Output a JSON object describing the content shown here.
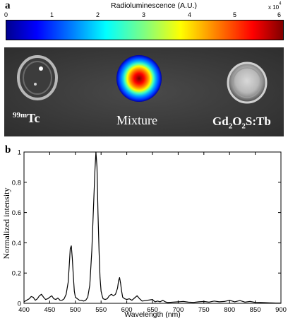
{
  "panel_a": {
    "letter": "a",
    "colorbar": {
      "title": "Radioluminescence (A.U.)",
      "ticks": [
        "0",
        "1",
        "2",
        "3",
        "4",
        "5",
        "6"
      ],
      "exponent_base": "x 10",
      "exponent_power": "4",
      "colormap": "jet"
    },
    "labels": {
      "left_mass": "99m",
      "left_symbol": "Tc",
      "center": "Mixture",
      "right_parts": [
        "Gd",
        "2",
        "O",
        "2",
        "S:Tb"
      ]
    }
  },
  "panel_b": {
    "letter": "b"
  },
  "chart_data": {
    "type": "line",
    "xlabel": "Wavelength (nm)",
    "ylabel": "Normalized intensity",
    "xlim": [
      400,
      900
    ],
    "ylim": [
      0,
      1
    ],
    "xticks": [
      400,
      450,
      500,
      550,
      600,
      650,
      700,
      750,
      800,
      850,
      900
    ],
    "yticks": [
      0,
      0.2,
      0.4,
      0.6,
      0.8,
      1
    ],
    "ytick_labels": [
      "0",
      "0.2",
      "0.4",
      "0.6",
      "0.8",
      "1"
    ],
    "grid": false,
    "series": [
      {
        "x": [
          400,
          405,
          410,
          414,
          418,
          422,
          426,
          430,
          434,
          438,
          442,
          446,
          450,
          454,
          458,
          462,
          466,
          470,
          474,
          478,
          482,
          486,
          488,
          490,
          492,
          494,
          496,
          498,
          500,
          504,
          508,
          512,
          516,
          520,
          524,
          528,
          532,
          536,
          538,
          540,
          542,
          544,
          546,
          548,
          550,
          552,
          554,
          558,
          562,
          566,
          570,
          574,
          578,
          582,
          584,
          586,
          588,
          590,
          592,
          596,
          600,
          605,
          610,
          615,
          620,
          625,
          630,
          640,
          650,
          655,
          660,
          665,
          670,
          675,
          680,
          690,
          700,
          710,
          720,
          730,
          740,
          750,
          760,
          770,
          780,
          790,
          800,
          810,
          820,
          830,
          840,
          850,
          860,
          870,
          880,
          890,
          900
        ],
        "y": [
          0.01,
          0.02,
          0.03,
          0.045,
          0.04,
          0.02,
          0.03,
          0.05,
          0.06,
          0.04,
          0.025,
          0.03,
          0.04,
          0.05,
          0.03,
          0.025,
          0.035,
          0.02,
          0.02,
          0.03,
          0.06,
          0.14,
          0.25,
          0.36,
          0.38,
          0.3,
          0.18,
          0.08,
          0.04,
          0.03,
          0.02,
          0.02,
          0.015,
          0.02,
          0.04,
          0.12,
          0.35,
          0.7,
          0.88,
          1.0,
          0.9,
          0.6,
          0.35,
          0.17,
          0.08,
          0.05,
          0.03,
          0.025,
          0.03,
          0.05,
          0.06,
          0.05,
          0.06,
          0.1,
          0.15,
          0.17,
          0.13,
          0.08,
          0.04,
          0.03,
          0.025,
          0.03,
          0.02,
          0.035,
          0.05,
          0.03,
          0.015,
          0.02,
          0.025,
          0.01,
          0.015,
          0.01,
          0.02,
          0.01,
          0.005,
          0.008,
          0.01,
          0.012,
          0.008,
          0.006,
          0.01,
          0.012,
          0.008,
          0.015,
          0.01,
          0.012,
          0.02,
          0.01,
          0.018,
          0.008,
          0.012,
          0.006,
          0.005,
          0.004,
          0.003,
          0.002,
          0.002
        ]
      }
    ]
  }
}
